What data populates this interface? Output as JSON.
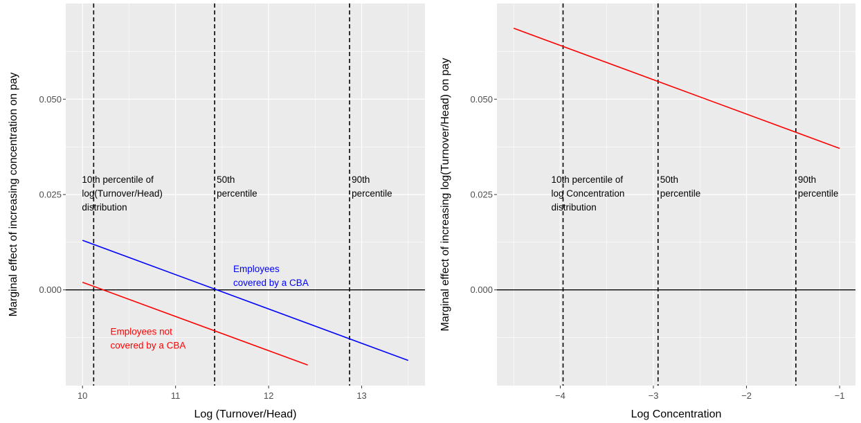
{
  "chart_data": [
    {
      "type": "line",
      "xlabel": "Log (Turnover/Head)",
      "ylabel": "Marginal effect of increasing concentration on pay",
      "xlim": [
        9.82,
        13.68
      ],
      "ylim": [
        -0.0251,
        0.0751
      ],
      "xticks": [
        10,
        11,
        12,
        13
      ],
      "xtick_labels": [
        "10",
        "11",
        "12",
        "13"
      ],
      "yticks": [
        0.0,
        0.025,
        0.05
      ],
      "ytick_labels": [
        "0.000",
        "0.025",
        "0.050"
      ],
      "grid": true,
      "hline": 0,
      "series": [
        {
          "x": [
            10.0,
            13.5
          ],
          "y": [
            0.013,
            -0.0185
          ],
          "color": "#0000ff"
        },
        {
          "x": [
            10.0,
            12.42
          ],
          "y": [
            0.002,
            -0.0197
          ],
          "color": "#ff0000"
        }
      ],
      "vlines": [
        {
          "x": 10.12,
          "label": [
            "10th percentile of",
            "log(Turnover/Head)",
            "distribution"
          ]
        },
        {
          "x": 11.42,
          "label": [
            "50th",
            "percentile"
          ]
        },
        {
          "x": 12.87,
          "label": [
            "90th",
            "percentile"
          ]
        }
      ],
      "annotations": [
        {
          "x": 11.62,
          "y": 0.0047,
          "lines": [
            "Employees",
            "covered by a CBA"
          ],
          "color": "#0000ff"
        },
        {
          "x": 10.3,
          "y": -0.0118,
          "lines": [
            "Employees not",
            "covered by a CBA"
          ],
          "color": "#ff0000"
        }
      ]
    },
    {
      "type": "line",
      "xlabel": "Log Concentration",
      "ylabel": "Marginal effect of increasing log(Turnover/Head) on pay",
      "xlim": [
        -4.68,
        -0.83
      ],
      "ylim": [
        -0.0251,
        0.0751
      ],
      "xticks": [
        -4,
        -3,
        -2,
        -1
      ],
      "xtick_labels": [
        "−4",
        "−3",
        "−2",
        "−1"
      ],
      "yticks": [
        0.0,
        0.025,
        0.05
      ],
      "ytick_labels": [
        "0.000",
        "0.025",
        "0.050"
      ],
      "grid": true,
      "hline": 0,
      "series": [
        {
          "x": [
            -4.5,
            -1.0
          ],
          "y": [
            0.0686,
            0.0371
          ],
          "color": "#ff0000"
        }
      ],
      "vlines": [
        {
          "x": -3.97,
          "label": [
            "10th percentile of",
            "log Concentration",
            "distribution"
          ]
        },
        {
          "x": -2.95,
          "label": [
            "50th",
            "percentile"
          ]
        },
        {
          "x": -1.47,
          "label": [
            "90th",
            "percentile"
          ]
        }
      ],
      "annotations": []
    }
  ]
}
